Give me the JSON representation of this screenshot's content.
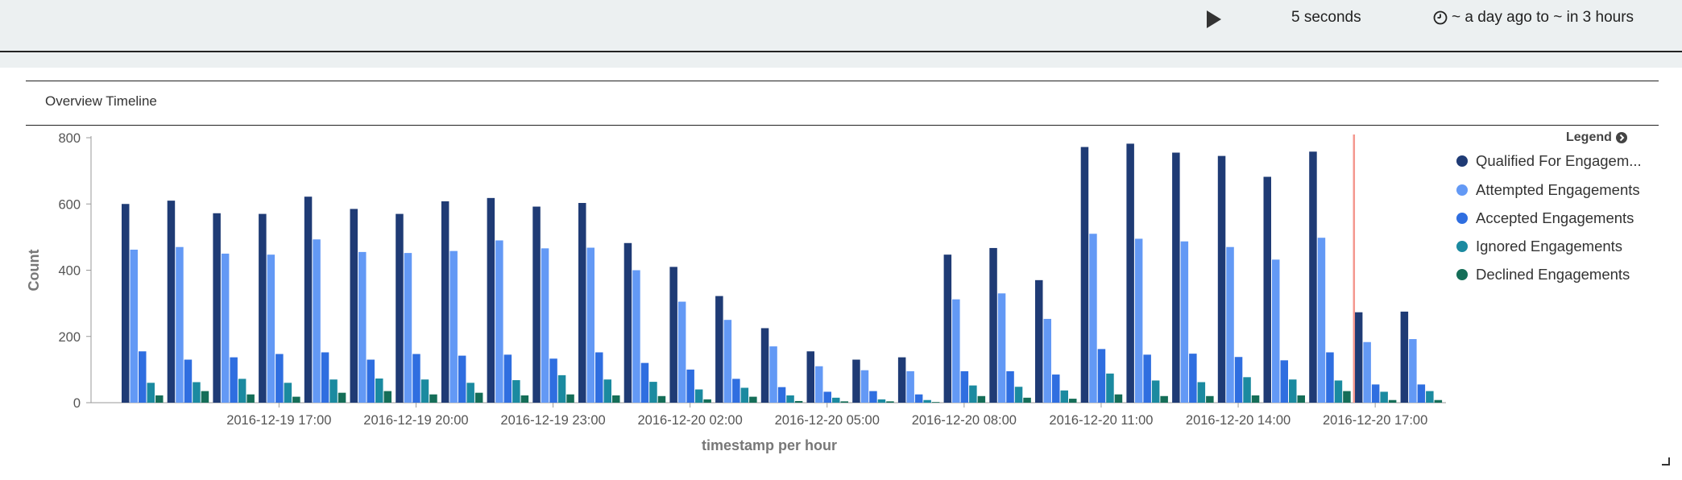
{
  "topbar": {
    "refresh_interval": "5 seconds",
    "time_range": "~ a day ago to ~ in 3 hours"
  },
  "panel": {
    "title": "Overview Timeline"
  },
  "legend": {
    "header": "Legend"
  },
  "chart_data": {
    "type": "bar",
    "xlabel": "timestamp per hour",
    "ylabel": "Count",
    "ylim": [
      0,
      800
    ],
    "yticks": [
      0,
      200,
      400,
      600,
      800
    ],
    "x": [
      "2016-12-19 14:00",
      "2016-12-19 15:00",
      "2016-12-19 16:00",
      "2016-12-19 17:00",
      "2016-12-19 18:00",
      "2016-12-19 19:00",
      "2016-12-19 20:00",
      "2016-12-19 21:00",
      "2016-12-19 22:00",
      "2016-12-19 23:00",
      "2016-12-20 00:00",
      "2016-12-20 01:00",
      "2016-12-20 02:00",
      "2016-12-20 03:00",
      "2016-12-20 04:00",
      "2016-12-20 05:00",
      "2016-12-20 06:00",
      "2016-12-20 07:00",
      "2016-12-20 08:00",
      "2016-12-20 09:00",
      "2016-12-20 10:00",
      "2016-12-20 11:00",
      "2016-12-20 12:00",
      "2016-12-20 13:00",
      "2016-12-20 14:00",
      "2016-12-20 15:00",
      "2016-12-20 16:00",
      "2016-12-20 17:00",
      "2016-12-20 18:00"
    ],
    "xtick_labels": [
      "2016-12-19 17:00",
      "2016-12-19 20:00",
      "2016-12-19 23:00",
      "2016-12-20 02:00",
      "2016-12-20 05:00",
      "2016-12-20 08:00",
      "2016-12-20 11:00",
      "2016-12-20 14:00",
      "2016-12-20 17:00"
    ],
    "xtick_index": [
      3,
      6,
      9,
      12,
      15,
      18,
      21,
      24,
      27
    ],
    "current_time_marker_index": 26,
    "series": [
      {
        "name": "Qualified For Engagem...",
        "color": "#1f3b75",
        "values": [
          600,
          610,
          572,
          570,
          622,
          585,
          570,
          608,
          618,
          592,
          603,
          482,
          410,
          322,
          225,
          155,
          130,
          137,
          447,
          467,
          370,
          772,
          782,
          755,
          745,
          682,
          758,
          273,
          275
        ]
      },
      {
        "name": "Attempted Engagements",
        "color": "#6399f5",
        "values": [
          462,
          470,
          450,
          447,
          493,
          455,
          452,
          458,
          490,
          466,
          468,
          400,
          305,
          250,
          170,
          110,
          98,
          95,
          312,
          330,
          253,
          510,
          495,
          487,
          470,
          432,
          498,
          183,
          192
        ]
      },
      {
        "name": "Accepted Engagements",
        "color": "#2f6ee0",
        "values": [
          155,
          130,
          137,
          147,
          152,
          130,
          147,
          142,
          145,
          133,
          152,
          120,
          100,
          72,
          47,
          33,
          35,
          25,
          95,
          95,
          85,
          162,
          145,
          148,
          138,
          128,
          152,
          55,
          55
        ]
      },
      {
        "name": "Ignored Engagements",
        "color": "#1b8aa0",
        "values": [
          60,
          62,
          72,
          60,
          70,
          73,
          70,
          60,
          68,
          83,
          70,
          63,
          40,
          45,
          22,
          15,
          10,
          8,
          52,
          48,
          37,
          88,
          67,
          62,
          77,
          70,
          67,
          33,
          35
        ]
      },
      {
        "name": "Declined Engagements",
        "color": "#156e58",
        "values": [
          22,
          35,
          25,
          18,
          30,
          35,
          25,
          30,
          22,
          25,
          22,
          20,
          10,
          18,
          5,
          4,
          4,
          2,
          20,
          15,
          12,
          25,
          20,
          20,
          22,
          22,
          35,
          8,
          8
        ]
      }
    ]
  }
}
